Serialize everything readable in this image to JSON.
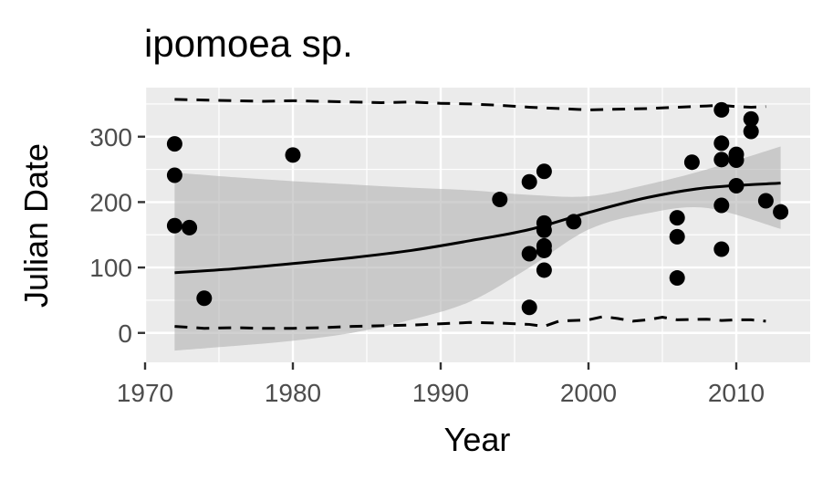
{
  "chart_data": {
    "type": "scatter",
    "title": "ipomoea sp.",
    "xlabel": "Year",
    "ylabel": "Julian Date",
    "xlim": [
      1970,
      2015
    ],
    "ylim": [
      -45,
      375
    ],
    "xticks": [
      1970,
      1980,
      1990,
      2000,
      2010
    ],
    "yticks": [
      0,
      100,
      200,
      300
    ],
    "grid": true,
    "legend": "none",
    "colors": {
      "panel": "#ebebeb",
      "grid": "#ffffff",
      "points": "#000000",
      "band": "#b3b3b3"
    },
    "points": [
      {
        "x": 1972,
        "y": 289
      },
      {
        "x": 1972,
        "y": 241
      },
      {
        "x": 1972,
        "y": 164
      },
      {
        "x": 1973,
        "y": 161
      },
      {
        "x": 1974,
        "y": 53
      },
      {
        "x": 1980,
        "y": 272
      },
      {
        "x": 1994,
        "y": 204
      },
      {
        "x": 1996,
        "y": 231
      },
      {
        "x": 1996,
        "y": 121
      },
      {
        "x": 1996,
        "y": 39
      },
      {
        "x": 1997,
        "y": 247
      },
      {
        "x": 1997,
        "y": 168
      },
      {
        "x": 1997,
        "y": 157
      },
      {
        "x": 1997,
        "y": 133
      },
      {
        "x": 1997,
        "y": 126
      },
      {
        "x": 1997,
        "y": 96
      },
      {
        "x": 1999,
        "y": 170
      },
      {
        "x": 2006,
        "y": 176
      },
      {
        "x": 2006,
        "y": 147
      },
      {
        "x": 2006,
        "y": 84
      },
      {
        "x": 2007,
        "y": 261
      },
      {
        "x": 2009,
        "y": 341
      },
      {
        "x": 2009,
        "y": 290
      },
      {
        "x": 2009,
        "y": 265
      },
      {
        "x": 2009,
        "y": 195
      },
      {
        "x": 2009,
        "y": 128
      },
      {
        "x": 2010,
        "y": 273
      },
      {
        "x": 2010,
        "y": 264
      },
      {
        "x": 2010,
        "y": 225
      },
      {
        "x": 2011,
        "y": 327
      },
      {
        "x": 2011,
        "y": 308
      },
      {
        "x": 2012,
        "y": 202
      },
      {
        "x": 2013,
        "y": 185
      }
    ],
    "series": [
      {
        "kind": "fit",
        "x": [
          1972,
          1976,
          1980,
          1984,
          1988,
          1992,
          1996,
          2000,
          2004,
          2008,
          2013
        ],
        "y": [
          92,
          98,
          106,
          115,
          126,
          141,
          158,
          184,
          207,
          222,
          229
        ]
      },
      {
        "kind": "confidence-band",
        "x": [
          1972,
          1976,
          1980,
          1984,
          1988,
          1992,
          1996,
          2000,
          2004,
          2008,
          2013
        ],
        "lower": [
          -27,
          -20,
          -12,
          0,
          20,
          48,
          100,
          158,
          183,
          191,
          159
        ],
        "upper": [
          245,
          238,
          232,
          227,
          222,
          218,
          211,
          209,
          227,
          250,
          285
        ]
      },
      {
        "kind": "upper-quantile",
        "x": [
          1972,
          1974,
          1976,
          1978,
          1980,
          1982,
          1984,
          1986,
          1988,
          1990,
          1992,
          1994,
          1996,
          1998,
          2000,
          2002,
          2004,
          2006,
          2008,
          2009,
          2010,
          2011,
          2012
        ],
        "y": [
          357,
          356,
          355,
          354,
          355,
          354,
          353,
          352,
          353,
          351,
          350,
          348,
          345,
          343,
          341,
          342,
          343,
          345,
          347,
          348,
          346,
          345,
          346
        ]
      },
      {
        "kind": "lower-quantile",
        "x": [
          1972,
          1974,
          1976,
          1978,
          1980,
          1982,
          1984,
          1986,
          1988,
          1990,
          1992,
          1994,
          1996,
          1997,
          1998,
          2000,
          2001,
          2002,
          2003,
          2004,
          2005,
          2006,
          2008,
          2009,
          2010,
          2011,
          2012
        ],
        "y": [
          10,
          7,
          8,
          7,
          7,
          8,
          10,
          11,
          12,
          14,
          16,
          15,
          13,
          10,
          18,
          20,
          25,
          22,
          18,
          20,
          24,
          20,
          21,
          19,
          20,
          20,
          18
        ]
      }
    ]
  }
}
